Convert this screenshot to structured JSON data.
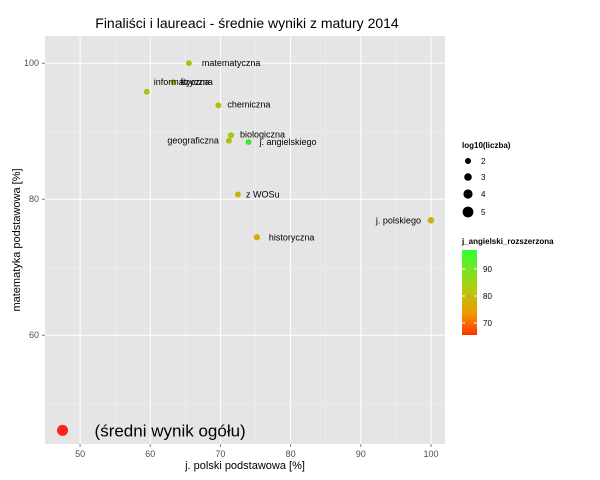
{
  "chart_data": {
    "type": "scatter",
    "title": "Finaliści i laureaci - średnie wyniki z matury 2014",
    "xlabel": "j. polski podstawowa [%]",
    "ylabel": "matematyka podstawowa [%]",
    "xlim": [
      45,
      102
    ],
    "ylim": [
      44,
      104
    ],
    "x_ticks": [
      50,
      60,
      70,
      80,
      90,
      100
    ],
    "y_ticks": [
      60,
      80,
      100
    ],
    "grid": true,
    "points": [
      {
        "label": "matematyczna",
        "x": 65.5,
        "y": 100.0,
        "size_log10": 2.2,
        "color": "#a8c413"
      },
      {
        "label": "fizyczna",
        "x": 63.3,
        "y": 97.2,
        "size_log10": 2.2,
        "color": "#aac212"
      },
      {
        "label": "informatyczna",
        "x": 59.5,
        "y": 95.8,
        "size_log10": 2.2,
        "color": "#a9c312"
      },
      {
        "label": "chemiczna",
        "x": 69.7,
        "y": 93.8,
        "size_log10": 2.2,
        "color": "#bcb80e"
      },
      {
        "label": "biologiczna",
        "x": 71.5,
        "y": 89.4,
        "size_log10": 2.3,
        "color": "#a6c513"
      },
      {
        "label": "geograficzna",
        "x": 71.2,
        "y": 88.6,
        "size_log10": 2.2,
        "color": "#b6bb10"
      },
      {
        "label": "j. angielskiego",
        "x": 74.0,
        "y": 88.4,
        "size_log10": 2.2,
        "color": "#35e92c"
      },
      {
        "label": "z WOSu",
        "x": 72.5,
        "y": 80.7,
        "size_log10": 2.2,
        "color": "#c7b20b"
      },
      {
        "label": "j. polskiego",
        "x": 100.0,
        "y": 76.9,
        "size_log10": 2.6,
        "color": "#c9b20b"
      },
      {
        "label": "historyczna",
        "x": 75.2,
        "y": 74.4,
        "size_log10": 2.4,
        "color": "#d6aa08"
      },
      {
        "label": "(średni wynik ogółu)",
        "x": 47.5,
        "y": 46.0,
        "size_log10": 5.4,
        "color": "#ff2020"
      }
    ],
    "legend": {
      "size_title": "log10(liczba)",
      "size_labels": [
        "2",
        "3",
        "4",
        "5"
      ],
      "color_title": "j_angielski_rozszerzona",
      "color_labels": [
        "90",
        "80",
        "70"
      ],
      "color_range": [
        "#33ff33",
        "#ff3300"
      ],
      "placement": "right"
    }
  }
}
